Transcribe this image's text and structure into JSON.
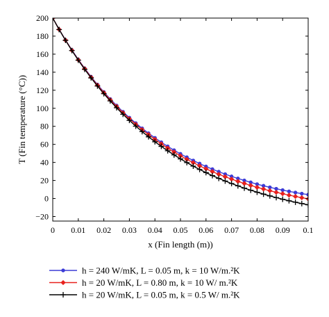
{
  "chart_data": {
    "type": "line",
    "xlabel": "x (Fin length (m))",
    "ylabel": "T (Fin temperature (°C))",
    "xlim": [
      0,
      0.1
    ],
    "ylim": [
      -25,
      200
    ],
    "x_ticks": [
      "0",
      "0.01",
      "0.02",
      "0.03",
      "0.04",
      "0.05",
      "0.06",
      "0.07",
      "0.08",
      "0.09",
      "0.1"
    ],
    "y_ticks": [
      "−20",
      "0",
      "20",
      "40",
      "60",
      "80",
      "100",
      "120",
      "140",
      "160",
      "180",
      "200"
    ],
    "grid": false,
    "legend_position": "below",
    "x": [
      0.0,
      0.0025,
      0.005,
      0.0075,
      0.01,
      0.0125,
      0.015,
      0.0175,
      0.02,
      0.0225,
      0.025,
      0.0275,
      0.03,
      0.0325,
      0.035,
      0.0375,
      0.04,
      0.0425,
      0.045,
      0.0475,
      0.05,
      0.0525,
      0.055,
      0.0575,
      0.06,
      0.0625,
      0.065,
      0.0675,
      0.07,
      0.0725,
      0.075,
      0.0775,
      0.08,
      0.0825,
      0.085,
      0.0875,
      0.09,
      0.0925,
      0.095,
      0.0975,
      0.1
    ],
    "series": [
      {
        "name": "h = 240 W/mK, L = 0.05 m, k = 10 W/m.²K",
        "color": "#3b3bd6",
        "marker": "dot",
        "values": [
          200,
          187.5,
          175.7,
          164.6,
          154.1,
          144.3,
          135.0,
          126.3,
          118.1,
          110.3,
          103.0,
          96.1,
          89.6,
          83.5,
          77.7,
          72.3,
          67.2,
          62.3,
          57.8,
          53.5,
          49.5,
          45.7,
          42.1,
          38.7,
          35.5,
          32.5,
          29.7,
          27.0,
          24.5,
          22.2,
          20.0,
          17.9,
          15.9,
          14.1,
          12.4,
          10.8,
          9.3,
          7.9,
          6.6,
          5.4,
          4.3
        ]
      },
      {
        "name": "h = 20 W/mK, L = 0.80 m, k = 10 W/ m.²K",
        "color": "#e8201c",
        "marker": "diamond",
        "values": [
          200,
          187.4,
          175.5,
          164.3,
          153.7,
          143.8,
          134.4,
          125.6,
          117.3,
          109.4,
          102.0,
          95.0,
          88.4,
          82.2,
          76.3,
          70.8,
          65.5,
          60.6,
          55.9,
          51.5,
          47.3,
          43.4,
          39.7,
          36.2,
          32.9,
          29.8,
          26.8,
          24.1,
          21.5,
          19.0,
          16.7,
          14.5,
          12.4,
          10.5,
          8.6,
          6.9,
          5.3,
          3.7,
          2.3,
          0.9,
          -0.4
        ]
      },
      {
        "name": "h = 20 W/mK, L = 0.05 m, k = 0.5 W/ m.²K",
        "color": "#000000",
        "marker": "plus",
        "values": [
          200,
          187.3,
          175.3,
          164.0,
          153.3,
          143.2,
          133.7,
          124.7,
          116.2,
          108.2,
          100.6,
          93.4,
          86.6,
          80.2,
          74.1,
          68.4,
          62.9,
          57.8,
          52.9,
          48.3,
          43.9,
          39.8,
          35.9,
          32.2,
          28.7,
          25.4,
          22.3,
          19.4,
          16.6,
          14.0,
          11.5,
          9.2,
          7.0,
          4.9,
          2.9,
          1.0,
          -0.8,
          -2.5,
          -4.1,
          -5.6,
          -7.0
        ]
      }
    ]
  }
}
